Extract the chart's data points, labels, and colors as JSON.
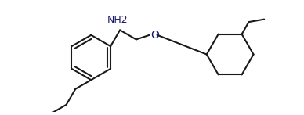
{
  "background_color": "#ffffff",
  "line_color": "#1a1a1a",
  "line_width": 1.5,
  "text_color": "#1a1a6e",
  "font_size": 9,
  "nh2_label": "NH2",
  "o_label": "O",
  "figsize": [
    3.88,
    1.47
  ],
  "dpi": 100,
  "xlim": [
    0,
    9.7
  ],
  "ylim": [
    0,
    3.5
  ]
}
